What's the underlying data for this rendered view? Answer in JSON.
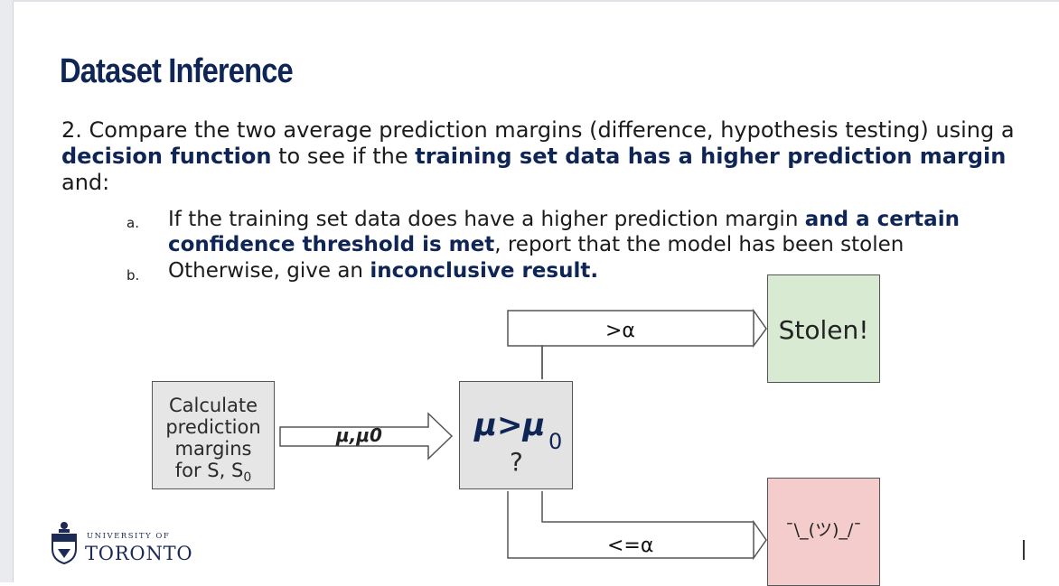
{
  "slide": {
    "title": "Dataset Inference",
    "para": {
      "t1": "2. Compare the two average prediction margins (difference, hypothesis testing) using a ",
      "b1": "decision function",
      "t2": " to see if the ",
      "b2": "training set data has a higher prediction margin",
      "t3": " and:"
    },
    "item_a": {
      "marker": "a.",
      "t1": "If the training set data does have a higher prediction margin ",
      "b1": "and a certain confidence threshold is met",
      "t2": ", report that the model has been stolen"
    },
    "item_b": {
      "marker": "b.",
      "t1": "Otherwise, give an ",
      "b1": "inconclusive result."
    }
  },
  "diagram": {
    "calc_line1": "Calculate",
    "calc_line2": "prediction",
    "calc_line3": "margins",
    "calc_line4": "for  S, S",
    "calc_sub": "0",
    "arrow_label": "μ,μ0",
    "decision_expr": "μ>μ",
    "decision_sub": "0",
    "decision_q": "?",
    "upper_label": ">α",
    "lower_label": "<=α",
    "stolen": "Stolen!",
    "shrug": "¯\\_(ツ)_/¯"
  },
  "logo": {
    "line1": "UNIVERSITY OF",
    "line2": "TORONTO"
  }
}
